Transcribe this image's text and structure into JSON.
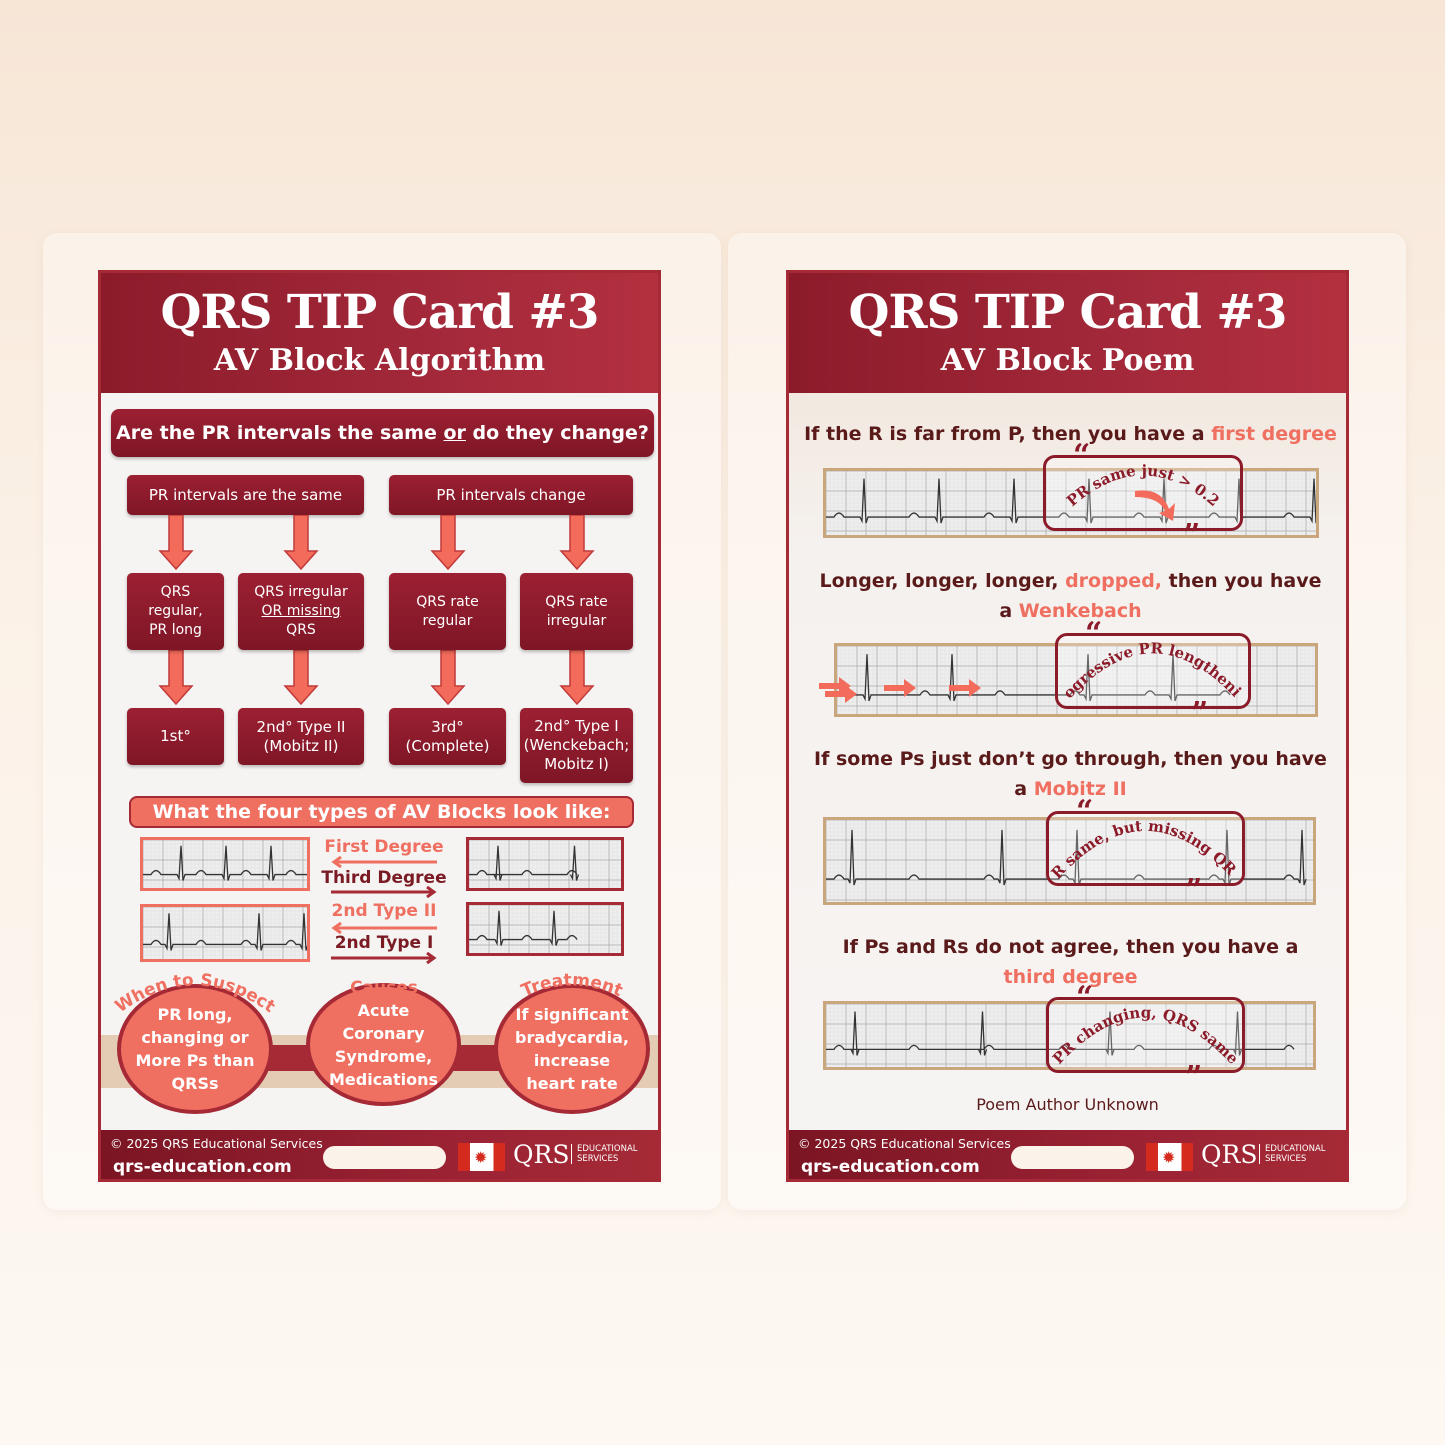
{
  "colors": {
    "primary": "#a52a36",
    "dark": "#7e1626",
    "accent": "#ef6f61",
    "tan": "#c9a67c"
  },
  "left_card": {
    "title": "QRS TIP Card #3",
    "subtitle": "AV Block Algorithm",
    "question": {
      "before": "Are the PR intervals the same ",
      "or": "or",
      "after": " do they change?"
    },
    "branches": [
      "PR intervals are the same",
      "PR intervals change"
    ],
    "criteria": [
      {
        "lines": [
          "QRS",
          "regular,",
          "PR long"
        ]
      },
      {
        "lines": [
          "QRS irregular",
          "OR missing",
          "QRS"
        ]
      },
      {
        "lines": [
          "QRS rate",
          "regular"
        ]
      },
      {
        "lines": [
          "QRS rate",
          "irregular"
        ]
      }
    ],
    "results": [
      {
        "lines": [
          "1st°"
        ]
      },
      {
        "lines": [
          "2nd° Type II",
          "(Mobitz II)"
        ]
      },
      {
        "lines": [
          "3rd°",
          "(Complete)"
        ]
      },
      {
        "lines": [
          "2nd° Type I",
          "(Wenckebach;",
          "Mobitz I)"
        ]
      }
    ],
    "types_heading": "What the four types of AV Blocks look like:",
    "type_labels": [
      "First Degree",
      "Third Degree",
      "2nd Type II",
      "2nd Type I"
    ],
    "bubbles": [
      {
        "title": "When to Suspect",
        "text": [
          "PR long,",
          "changing or",
          "More Ps than",
          "QRSs"
        ]
      },
      {
        "title": "Causes",
        "text": [
          "Acute",
          "Coronary",
          "Syndrome,",
          "Medications"
        ]
      },
      {
        "title": "Treatment",
        "text": [
          "If significant",
          "bradycardia,",
          "increase",
          "heart rate"
        ]
      }
    ]
  },
  "right_card": {
    "title": "QRS TIP Card #3",
    "subtitle": "AV Block Poem",
    "verses": [
      {
        "line1": "If the R is far from P, then you have a ",
        "hl1": "first degree",
        "quote": "PR same just > 0.2"
      },
      {
        "line1": "Longer, longer, longer, ",
        "hl1": "dropped,",
        "line1b": " then you have",
        "line2": "a ",
        "hl2": "Wenkebach",
        "quote": "Progressive PR lengthening"
      },
      {
        "line1": "If some Ps just don’t go through, then you have",
        "line2": "a ",
        "hl2": "Mobitz II",
        "quote": "PR same, but missing QRS’"
      },
      {
        "line1": "If Ps and Rs do not agree, then you have a",
        "hl2": "third degree",
        "quote": "PR changing, QRS same"
      }
    ],
    "author": "Poem Author Unknown"
  },
  "footer": {
    "copyright": "© 2025 QRS Educational Services",
    "url": "qrs-education.com",
    "logo": "QRS",
    "logo_sub": [
      "EDUCATIONAL",
      "SERVICES"
    ],
    "flag": "canada-flag-icon"
  },
  "quote_icons": [
    "open-quote-icon",
    "close-quote-icon"
  ]
}
